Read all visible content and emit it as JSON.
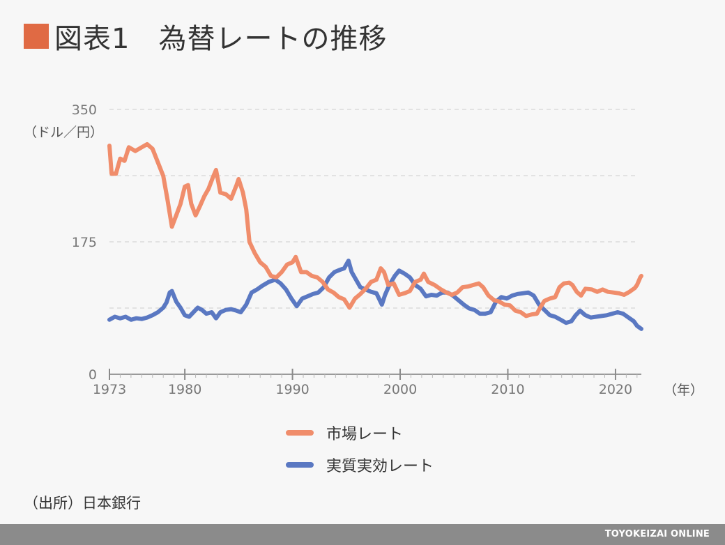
{
  "title": {
    "text": "図表1　為替レートの推移",
    "marker_color": "#e06a44"
  },
  "source": "（出所）日本銀行",
  "footer": "TOYOKEIZAI ONLINE",
  "chart_data": {
    "type": "line",
    "ylabel": "（ドル／円）",
    "xlabel": "（年）",
    "y_tick_labels": [
      "0",
      "175",
      "350"
    ],
    "x_tick_labels": [
      "1973",
      "1980",
      "1990",
      "2000",
      "2010",
      "2020"
    ],
    "ylim": [
      0,
      350
    ],
    "xlim": [
      1973,
      2022.4
    ],
    "grid": true,
    "legend_position": "bottom-center",
    "series": [
      {
        "name": "市場レート",
        "color": "#f08d6b",
        "points": [
          [
            1973.0,
            302
          ],
          [
            1973.2,
            265
          ],
          [
            1973.6,
            265
          ],
          [
            1974.0,
            285
          ],
          [
            1974.4,
            282
          ],
          [
            1974.8,
            300
          ],
          [
            1975.4,
            295
          ],
          [
            1976.0,
            300
          ],
          [
            1976.5,
            304
          ],
          [
            1977.0,
            298
          ],
          [
            1977.5,
            280
          ],
          [
            1978.0,
            262
          ],
          [
            1978.4,
            230
          ],
          [
            1978.8,
            195
          ],
          [
            1979.2,
            210
          ],
          [
            1979.6,
            225
          ],
          [
            1980.0,
            248
          ],
          [
            1980.3,
            250
          ],
          [
            1980.6,
            225
          ],
          [
            1981.0,
            210
          ],
          [
            1981.4,
            222
          ],
          [
            1981.8,
            235
          ],
          [
            1982.2,
            245
          ],
          [
            1982.6,
            260
          ],
          [
            1982.9,
            270
          ],
          [
            1983.3,
            240
          ],
          [
            1983.8,
            238
          ],
          [
            1984.3,
            232
          ],
          [
            1984.8,
            250
          ],
          [
            1985.0,
            258
          ],
          [
            1985.4,
            240
          ],
          [
            1985.7,
            218
          ],
          [
            1986.0,
            175
          ],
          [
            1986.5,
            160
          ],
          [
            1987.0,
            148
          ],
          [
            1987.5,
            142
          ],
          [
            1988.0,
            130
          ],
          [
            1988.5,
            128
          ],
          [
            1989.0,
            135
          ],
          [
            1989.5,
            145
          ],
          [
            1990.0,
            148
          ],
          [
            1990.3,
            155
          ],
          [
            1990.8,
            135
          ],
          [
            1991.3,
            135
          ],
          [
            1991.8,
            130
          ],
          [
            1992.3,
            128
          ],
          [
            1992.8,
            122
          ],
          [
            1993.3,
            112
          ],
          [
            1993.8,
            108
          ],
          [
            1994.3,
            102
          ],
          [
            1994.8,
            99
          ],
          [
            1995.3,
            88
          ],
          [
            1995.8,
            100
          ],
          [
            1996.3,
            106
          ],
          [
            1996.8,
            113
          ],
          [
            1997.3,
            122
          ],
          [
            1997.8,
            125
          ],
          [
            1998.2,
            140
          ],
          [
            1998.5,
            135
          ],
          [
            1998.9,
            118
          ],
          [
            1999.4,
            120
          ],
          [
            1999.9,
            105
          ],
          [
            2000.4,
            107
          ],
          [
            2000.9,
            110
          ],
          [
            2001.4,
            122
          ],
          [
            2001.9,
            125
          ],
          [
            2002.2,
            133
          ],
          [
            2002.6,
            122
          ],
          [
            2003.2,
            118
          ],
          [
            2003.8,
            112
          ],
          [
            2004.3,
            108
          ],
          [
            2004.8,
            105
          ],
          [
            2005.3,
            108
          ],
          [
            2005.8,
            115
          ],
          [
            2006.3,
            116
          ],
          [
            2006.8,
            118
          ],
          [
            2007.3,
            120
          ],
          [
            2007.7,
            115
          ],
          [
            2008.2,
            104
          ],
          [
            2008.7,
            98
          ],
          [
            2009.2,
            96
          ],
          [
            2009.7,
            92
          ],
          [
            2010.2,
            91
          ],
          [
            2010.7,
            84
          ],
          [
            2011.2,
            82
          ],
          [
            2011.7,
            77
          ],
          [
            2012.2,
            79
          ],
          [
            2012.7,
            80
          ],
          [
            2013.0,
            88
          ],
          [
            2013.4,
            97
          ],
          [
            2013.9,
            100
          ],
          [
            2014.4,
            102
          ],
          [
            2014.8,
            115
          ],
          [
            2015.2,
            120
          ],
          [
            2015.7,
            121
          ],
          [
            2016.0,
            118
          ],
          [
            2016.4,
            109
          ],
          [
            2016.8,
            104
          ],
          [
            2017.2,
            113
          ],
          [
            2017.8,
            112
          ],
          [
            2018.3,
            109
          ],
          [
            2018.8,
            112
          ],
          [
            2019.3,
            109
          ],
          [
            2019.8,
            108
          ],
          [
            2020.3,
            107
          ],
          [
            2020.8,
            105
          ],
          [
            2021.3,
            109
          ],
          [
            2021.8,
            114
          ],
          [
            2022.0,
            118
          ],
          [
            2022.3,
            128
          ],
          [
            2022.4,
            130
          ]
        ]
      },
      {
        "name": "実質実効レート",
        "color": "#5a78c2",
        "points": [
          [
            1973.0,
            72
          ],
          [
            1973.5,
            76
          ],
          [
            1974.0,
            74
          ],
          [
            1974.5,
            76
          ],
          [
            1975.0,
            72
          ],
          [
            1975.5,
            74
          ],
          [
            1976.0,
            73
          ],
          [
            1976.5,
            75
          ],
          [
            1977.0,
            78
          ],
          [
            1977.5,
            82
          ],
          [
            1978.0,
            88
          ],
          [
            1978.3,
            95
          ],
          [
            1978.6,
            108
          ],
          [
            1978.8,
            110
          ],
          [
            1979.2,
            96
          ],
          [
            1979.6,
            88
          ],
          [
            1980.0,
            78
          ],
          [
            1980.4,
            76
          ],
          [
            1980.8,
            82
          ],
          [
            1981.2,
            88
          ],
          [
            1981.6,
            85
          ],
          [
            1982.0,
            80
          ],
          [
            1982.5,
            82
          ],
          [
            1982.9,
            74
          ],
          [
            1983.3,
            82
          ],
          [
            1983.8,
            85
          ],
          [
            1984.3,
            86
          ],
          [
            1984.8,
            84
          ],
          [
            1985.2,
            82
          ],
          [
            1985.7,
            92
          ],
          [
            1986.2,
            108
          ],
          [
            1986.7,
            112
          ],
          [
            1987.2,
            117
          ],
          [
            1987.8,
            122
          ],
          [
            1988.4,
            125
          ],
          [
            1988.9,
            120
          ],
          [
            1989.4,
            112
          ],
          [
            1989.9,
            100
          ],
          [
            1990.4,
            90
          ],
          [
            1990.9,
            100
          ],
          [
            1991.4,
            103
          ],
          [
            1991.9,
            106
          ],
          [
            1992.4,
            108
          ],
          [
            1992.9,
            115
          ],
          [
            1993.4,
            128
          ],
          [
            1993.9,
            135
          ],
          [
            1994.4,
            138
          ],
          [
            1994.8,
            140
          ],
          [
            1995.2,
            150
          ],
          [
            1995.5,
            135
          ],
          [
            1995.9,
            125
          ],
          [
            1996.3,
            115
          ],
          [
            1996.8,
            112
          ],
          [
            1997.3,
            109
          ],
          [
            1997.8,
            107
          ],
          [
            1998.3,
            92
          ],
          [
            1998.6,
            105
          ],
          [
            1999.0,
            118
          ],
          [
            1999.5,
            130
          ],
          [
            1999.9,
            137
          ],
          [
            2000.4,
            133
          ],
          [
            2000.9,
            128
          ],
          [
            2001.4,
            118
          ],
          [
            2001.9,
            113
          ],
          [
            2002.4,
            103
          ],
          [
            2002.9,
            105
          ],
          [
            2003.4,
            104
          ],
          [
            2003.9,
            108
          ],
          [
            2004.4,
            108
          ],
          [
            2004.9,
            104
          ],
          [
            2005.4,
            98
          ],
          [
            2005.9,
            92
          ],
          [
            2006.4,
            87
          ],
          [
            2006.9,
            85
          ],
          [
            2007.4,
            80
          ],
          [
            2007.9,
            80
          ],
          [
            2008.4,
            82
          ],
          [
            2008.9,
            96
          ],
          [
            2009.4,
            102
          ],
          [
            2009.9,
            100
          ],
          [
            2010.4,
            104
          ],
          [
            2010.9,
            106
          ],
          [
            2011.4,
            107
          ],
          [
            2011.9,
            108
          ],
          [
            2012.4,
            104
          ],
          [
            2012.9,
            92
          ],
          [
            2013.4,
            85
          ],
          [
            2013.9,
            78
          ],
          [
            2014.4,
            76
          ],
          [
            2014.9,
            72
          ],
          [
            2015.4,
            68
          ],
          [
            2015.9,
            70
          ],
          [
            2016.3,
            78
          ],
          [
            2016.7,
            84
          ],
          [
            2017.2,
            78
          ],
          [
            2017.7,
            75
          ],
          [
            2018.2,
            76
          ],
          [
            2018.7,
            77
          ],
          [
            2019.2,
            78
          ],
          [
            2019.7,
            80
          ],
          [
            2020.2,
            82
          ],
          [
            2020.7,
            80
          ],
          [
            2021.2,
            75
          ],
          [
            2021.7,
            70
          ],
          [
            2022.0,
            64
          ],
          [
            2022.4,
            60
          ]
        ]
      }
    ]
  }
}
